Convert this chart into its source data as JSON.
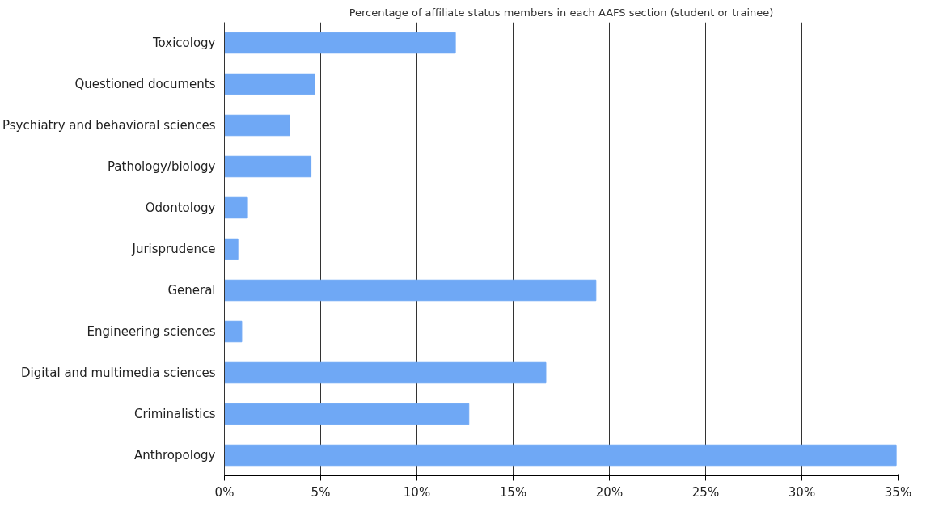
{
  "chart_data": {
    "type": "bar",
    "orientation": "horizontal",
    "title": "Percentage of affiliate status members in each AAFS section (student or trainee)",
    "categories": [
      "Toxicology",
      "Questioned documents",
      "Psychiatry and behavioral sciences",
      "Pathology/biology",
      "Odontology",
      "Jurisprudence",
      "General",
      "Engineering sciences",
      "Digital and multimedia sciences",
      "Criminalistics",
      "Anthropology"
    ],
    "values": [
      12.0,
      4.7,
      3.4,
      4.5,
      1.2,
      0.7,
      19.3,
      0.9,
      16.7,
      12.7,
      34.9
    ],
    "color": "#6fa8f5",
    "xlim": [
      0,
      35
    ],
    "xticks": [
      {
        "value": 0,
        "label": "0%"
      },
      {
        "value": 5,
        "label": "5%"
      },
      {
        "value": 10,
        "label": "10%"
      },
      {
        "value": 15,
        "label": "15%"
      },
      {
        "value": 20,
        "label": "20%"
      },
      {
        "value": 25,
        "label": "25%"
      },
      {
        "value": 30,
        "label": "30%"
      },
      {
        "value": 35,
        "label": "35%"
      }
    ],
    "grid": "x"
  }
}
